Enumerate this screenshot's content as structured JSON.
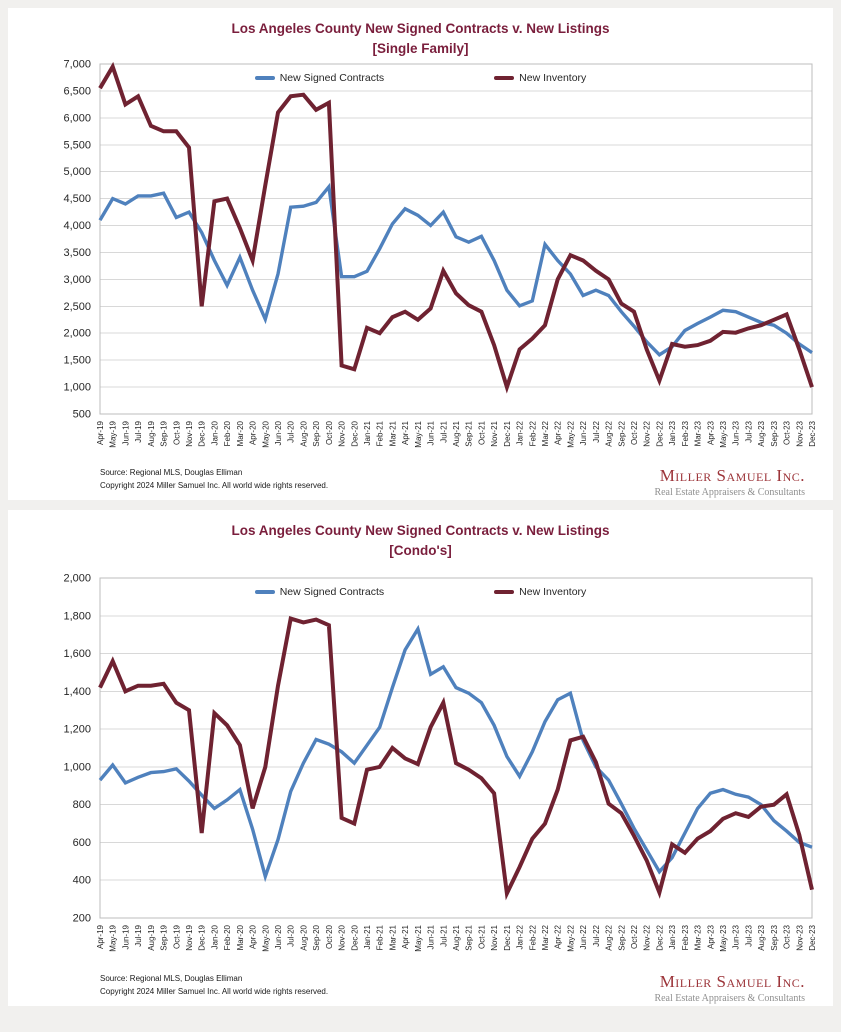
{
  "page": {
    "background": "#f1f0ee"
  },
  "footer": {
    "source_line1": "Source: Regional MLS, Douglas Elliman",
    "source_line2": "Copyright 2024 Miller Samuel Inc.  All world wide rights reserved.",
    "logo_name": "Miller Samuel Inc.",
    "logo_tagline": "Real Estate Appraisers & Consultants"
  },
  "colors": {
    "contracts_blue": "#4f81bd",
    "inventory_red": "#6f2231",
    "title_maroon": "#7a1e3c",
    "gridline": "#d8d8d8",
    "plot_border": "#bdbdbd",
    "tick_text": "#262626",
    "logo_red": "#9c3439"
  },
  "chart_data": [
    {
      "type": "line",
      "title": "Los Angeles County New Signed Contracts v. New Listings",
      "subtitle": "[Single Family]",
      "legend_position": "top-center",
      "grid": true,
      "ylim": [
        500,
        7000
      ],
      "ytick_step": 500,
      "ytick_labels": [
        "500",
        "1,000",
        "1,500",
        "2,000",
        "2,500",
        "3,000",
        "3,500",
        "4,000",
        "4,500",
        "5,000",
        "5,500",
        "6,000",
        "6,500",
        "7,000"
      ],
      "x": [
        "Apr-19",
        "May-19",
        "Jun-19",
        "Jul-19",
        "Aug-19",
        "Sep-19",
        "Oct-19",
        "Nov-19",
        "Dec-19",
        "Jan-20",
        "Feb-20",
        "Mar-20",
        "Apr-20",
        "May-20",
        "Jun-20",
        "Jul-20",
        "Aug-20",
        "Sep-20",
        "Oct-20",
        "Nov-20",
        "Dec-20",
        "Jan-21",
        "Feb-21",
        "Mar-21",
        "Apr-21",
        "May-21",
        "Jun-21",
        "Jul-21",
        "Aug-21",
        "Sep-21",
        "Oct-21",
        "Nov-21",
        "Dec-21",
        "Jan-22",
        "Feb-22",
        "Mar-22",
        "Apr-22",
        "May-22",
        "Jun-22",
        "Jul-22",
        "Aug-22",
        "Sep-22",
        "Oct-22",
        "Nov-22",
        "Dec-22",
        "Jan-23",
        "Feb-23",
        "Mar-23",
        "Apr-23",
        "May-23",
        "Jun-23",
        "Jul-23",
        "Aug-23",
        "Sep-23",
        "Oct-23",
        "Nov-23",
        "Dec-23"
      ],
      "series": [
        {
          "name": "New Signed Contracts",
          "color": "#4f81bd",
          "values": [
            4100,
            4500,
            4400,
            4550,
            4550,
            4600,
            4150,
            4250,
            3870,
            3350,
            2890,
            3410,
            2800,
            2260,
            3100,
            4340,
            4360,
            4430,
            4720,
            3050,
            3050,
            3150,
            3570,
            4030,
            4310,
            4190,
            4000,
            4250,
            3790,
            3690,
            3800,
            3350,
            2800,
            2510,
            2600,
            3650,
            3350,
            3100,
            2700,
            2800,
            2700,
            2400,
            2130,
            1840,
            1600,
            1750,
            2050,
            2180,
            2300,
            2425,
            2400,
            2300,
            2200,
            2150,
            2000,
            1800,
            1640
          ]
        },
        {
          "name": "New Inventory",
          "color": "#6f2231",
          "values": [
            6550,
            6950,
            6250,
            6400,
            5850,
            5750,
            5750,
            5450,
            2500,
            4450,
            4500,
            3950,
            3350,
            4750,
            6100,
            6400,
            6430,
            6150,
            6280,
            1400,
            1330,
            2100,
            2000,
            2300,
            2400,
            2250,
            2460,
            3160,
            2740,
            2520,
            2400,
            1780,
            1000,
            1700,
            1900,
            2150,
            3000,
            3450,
            3350,
            3160,
            3000,
            2550,
            2400,
            1700,
            1120,
            1800,
            1750,
            1780,
            1860,
            2025,
            2010,
            2090,
            2150,
            2250,
            2350,
            1700,
            1000
          ]
        }
      ]
    },
    {
      "type": "line",
      "title": "Los Angeles County New Signed Contracts v. New Listings",
      "subtitle": "[Condo's]",
      "legend_position": "top-center",
      "grid": true,
      "ylim": [
        200,
        2000
      ],
      "ytick_step": 200,
      "ytick_labels": [
        "200",
        "400",
        "600",
        "800",
        "1,000",
        "1,200",
        "1,400",
        "1,600",
        "1,800",
        "2,000"
      ],
      "x": [
        "Apr-19",
        "May-19",
        "Jun-19",
        "Jul-19",
        "Aug-19",
        "Sep-19",
        "Oct-19",
        "Nov-19",
        "Dec-19",
        "Jan-20",
        "Feb-20",
        "Mar-20",
        "Apr-20",
        "May-20",
        "Jun-20",
        "Jul-20",
        "Aug-20",
        "Sep-20",
        "Oct-20",
        "Nov-20",
        "Dec-20",
        "Jan-21",
        "Feb-21",
        "Mar-21",
        "Apr-21",
        "May-21",
        "Jun-21",
        "Jul-21",
        "Aug-21",
        "Sep-21",
        "Oct-21",
        "Nov-21",
        "Dec-21",
        "Jan-22",
        "Feb-22",
        "Mar-22",
        "Apr-22",
        "May-22",
        "Jun-22",
        "Jul-22",
        "Aug-22",
        "Sep-22",
        "Oct-22",
        "Nov-22",
        "Dec-22",
        "Jan-23",
        "Feb-23",
        "Mar-23",
        "Apr-23",
        "May-23",
        "Jun-23",
        "Jul-23",
        "Aug-23",
        "Sep-23",
        "Oct-23",
        "Nov-23",
        "Dec-23"
      ],
      "series": [
        {
          "name": "New Signed Contracts",
          "color": "#4f81bd",
          "values": [
            930,
            1010,
            915,
            945,
            970,
            975,
            990,
            925,
            850,
            780,
            825,
            880,
            670,
            420,
            615,
            870,
            1020,
            1145,
            1120,
            1080,
            1020,
            1115,
            1210,
            1420,
            1620,
            1730,
            1490,
            1530,
            1420,
            1390,
            1340,
            1220,
            1055,
            950,
            1080,
            1240,
            1355,
            1390,
            1140,
            1000,
            930,
            805,
            675,
            560,
            445,
            520,
            650,
            780,
            860,
            880,
            855,
            840,
            800,
            715,
            660,
            600,
            575
          ]
        },
        {
          "name": "New Inventory",
          "color": "#6f2231",
          "values": [
            1420,
            1560,
            1400,
            1430,
            1430,
            1440,
            1340,
            1300,
            650,
            1285,
            1220,
            1115,
            780,
            1000,
            1430,
            1785,
            1765,
            1780,
            1750,
            730,
            700,
            985,
            1000,
            1100,
            1045,
            1015,
            1210,
            1340,
            1020,
            985,
            940,
            860,
            330,
            470,
            620,
            700,
            880,
            1140,
            1160,
            1025,
            805,
            755,
            635,
            505,
            335,
            590,
            545,
            620,
            660,
            725,
            755,
            735,
            790,
            800,
            855,
            640,
            350
          ]
        }
      ]
    }
  ]
}
